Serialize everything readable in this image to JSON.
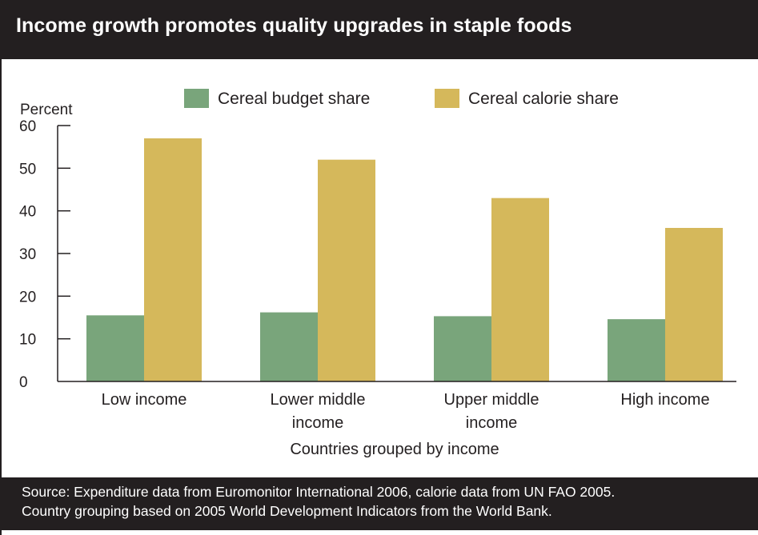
{
  "title": "Income growth promotes quality upgrades in staple foods",
  "footer": {
    "line1": "Source: Expenditure data from Euromonitor International 2006, calorie data from UN FAO 2005.",
    "line2": "Country grouping based on 2005 World Development Indicators from the World Bank."
  },
  "colors": {
    "budget": "#79a57b",
    "calorie": "#d5b85b",
    "ink": "#231f20",
    "panel": "#231f20"
  },
  "chart_data": {
    "type": "bar",
    "ylabel": "Percent",
    "xlabel": "Countries grouped by income",
    "ylim": [
      0,
      60
    ],
    "yticks": [
      0,
      10,
      20,
      30,
      40,
      50,
      60
    ],
    "categories": [
      [
        "Low income"
      ],
      [
        "Lower middle",
        "income"
      ],
      [
        "Upper middle",
        "income"
      ],
      [
        "High income"
      ]
    ],
    "series": [
      {
        "name": "Cereal budget share",
        "values": [
          15.5,
          16.2,
          15.3,
          14.6
        ]
      },
      {
        "name": "Cereal calorie share",
        "values": [
          57,
          52,
          43,
          36
        ]
      }
    ],
    "legend": "top"
  }
}
